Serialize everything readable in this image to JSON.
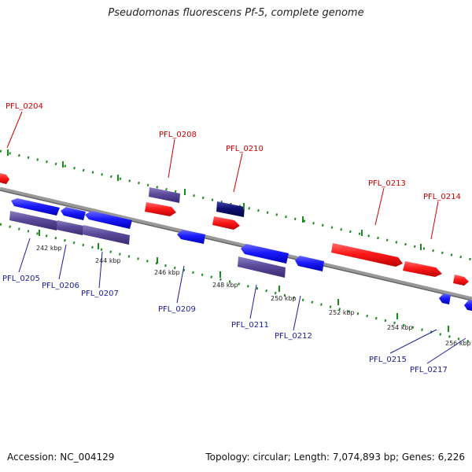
{
  "title": "Pseudomonas fluorescens Pf-5, complete genome",
  "footer": {
    "accession": "Accession: NC_004129",
    "summary": "Topology: circular; Length: 7,074,893 bp; Genes: 6,226"
  },
  "colors": {
    "forward_gene": "#ff1a1a",
    "reverse_gene": "#1a1aff",
    "forward_cds": "#5a4a9a",
    "reverse_cds": "#3c3c90",
    "backbone": "#888888",
    "ticks": "#1a8a1a"
  },
  "labels": {
    "forward": [
      "PFL_0204",
      "PFL_0208",
      "PFL_0210",
      "PFL_0213",
      "PFL_0214"
    ],
    "reverse": [
      "PFL_0205",
      "PFL_0206",
      "PFL_0207",
      "PFL_0209",
      "PFL_0211",
      "PFL_0212",
      "PFL_0215",
      "PFL_0217"
    ]
  },
  "ticks": [
    "242 kbp",
    "244 kbp",
    "246 kbp",
    "248 kbp",
    "250 kbp",
    "252 kbp",
    "254 kbp",
    "256 kbp"
  ]
}
